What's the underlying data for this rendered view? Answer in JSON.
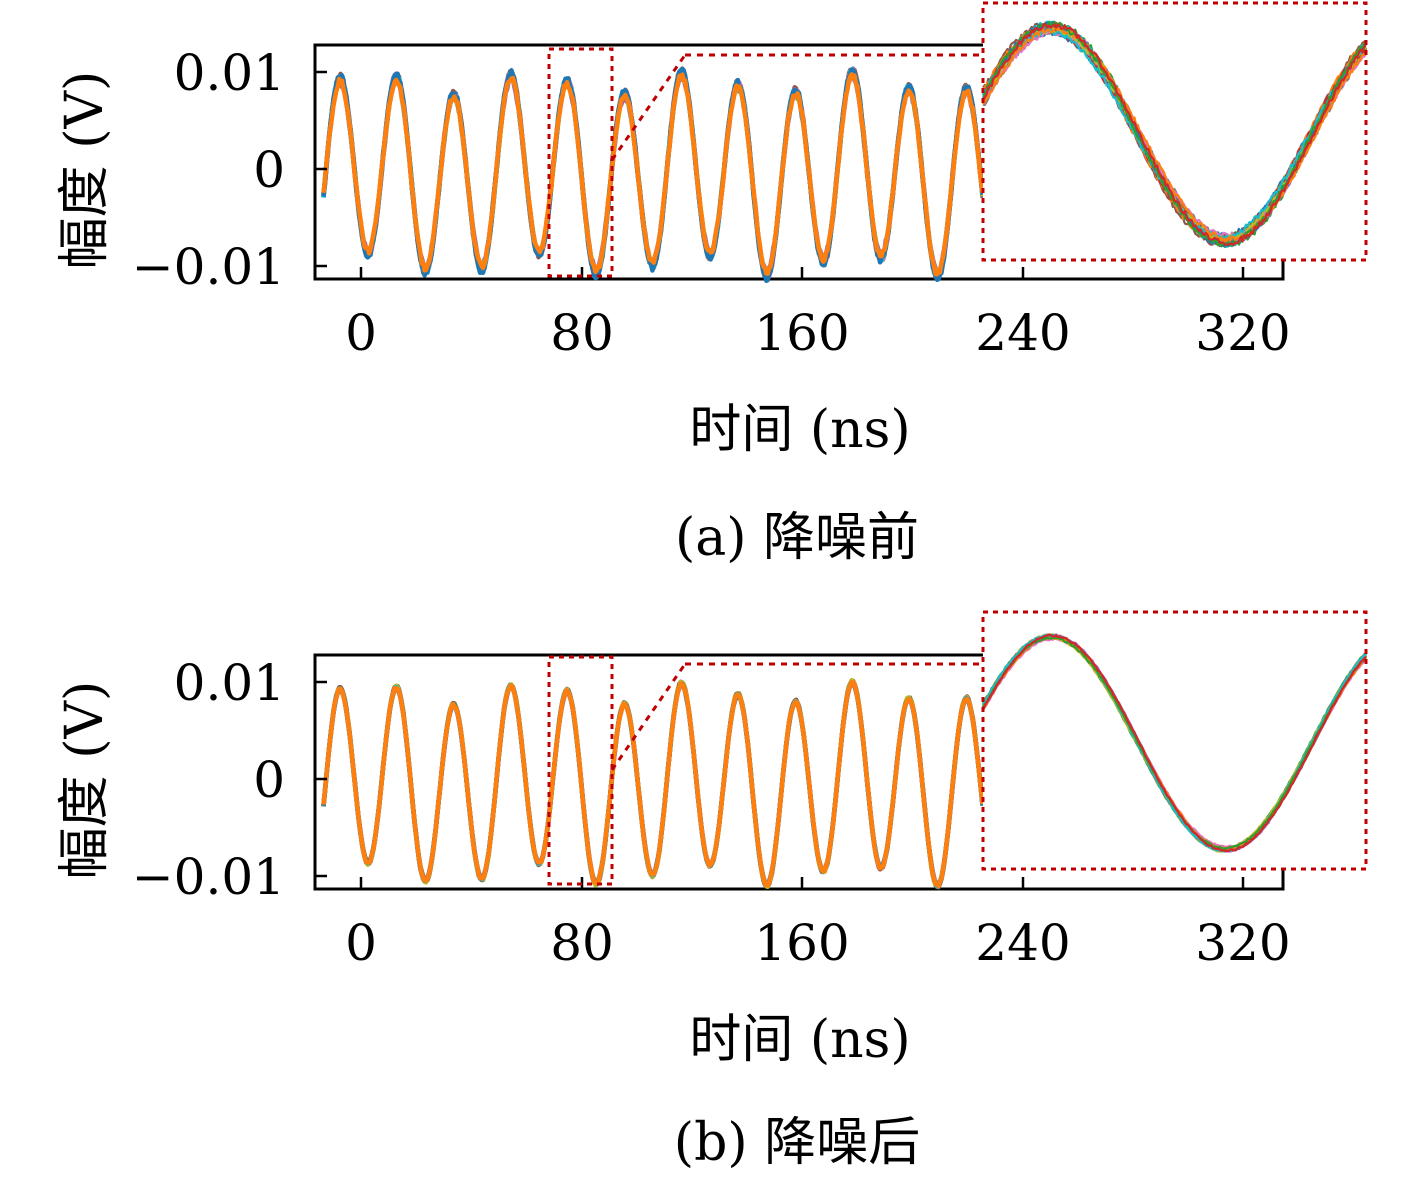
{
  "chart_data": [
    {
      "type": "line",
      "caption": "(a) 降噪前",
      "xlabel": "时间 (ns)",
      "ylabel": "幅度 (V)",
      "xlim": [
        -5,
        335
      ],
      "ylim": [
        -0.011,
        0.0135
      ],
      "xticks": [
        0,
        80,
        160,
        240,
        320
      ],
      "xtick_labels": [
        "0",
        "80",
        "160",
        "240",
        "320"
      ],
      "yticks": [
        0.01,
        0,
        -0.01
      ],
      "ytick_labels": [
        "0.01",
        "0",
        "−0.01"
      ],
      "grid": false,
      "signal": {
        "amplitude": 0.0095,
        "period_ns": 20.0,
        "phase_ns": 2.5,
        "offset": 0.0
      },
      "series_count": 12,
      "noise_level": "high",
      "inset": {
        "zoom_x_range": [
          68,
          90
        ],
        "zoom_y_range": [
          -0.011,
          0.0135
        ]
      },
      "colors": [
        "#1f77b4",
        "#ff7f0e",
        "#2ca02c",
        "#d62728",
        "#9467bd",
        "#8c564b",
        "#e377c2",
        "#7f7f7f",
        "#bcbd22",
        "#17becf"
      ],
      "highlight_color": "#c00000"
    },
    {
      "type": "line",
      "caption": "(b) 降噪后",
      "xlabel": "时间 (ns)",
      "ylabel": "幅度 (V)",
      "xlim": [
        -5,
        335
      ],
      "ylim": [
        -0.011,
        0.0135
      ],
      "xticks": [
        0,
        80,
        160,
        240,
        320
      ],
      "xtick_labels": [
        "0",
        "80",
        "160",
        "240",
        "320"
      ],
      "yticks": [
        0.01,
        0,
        -0.01
      ],
      "ytick_labels": [
        "0.01",
        "0",
        "−0.01"
      ],
      "grid": false,
      "signal": {
        "amplitude": 0.0095,
        "period_ns": 20.0,
        "phase_ns": 2.5,
        "offset": 0.0
      },
      "series_count": 12,
      "noise_level": "low",
      "inset": {
        "zoom_x_range": [
          68,
          90
        ],
        "zoom_y_range": [
          -0.011,
          0.0135
        ]
      },
      "colors": [
        "#1f77b4",
        "#ff7f0e",
        "#2ca02c",
        "#d62728",
        "#9467bd",
        "#8c564b",
        "#e377c2",
        "#7f7f7f",
        "#bcbd22",
        "#17becf"
      ],
      "highlight_color": "#c00000"
    }
  ]
}
